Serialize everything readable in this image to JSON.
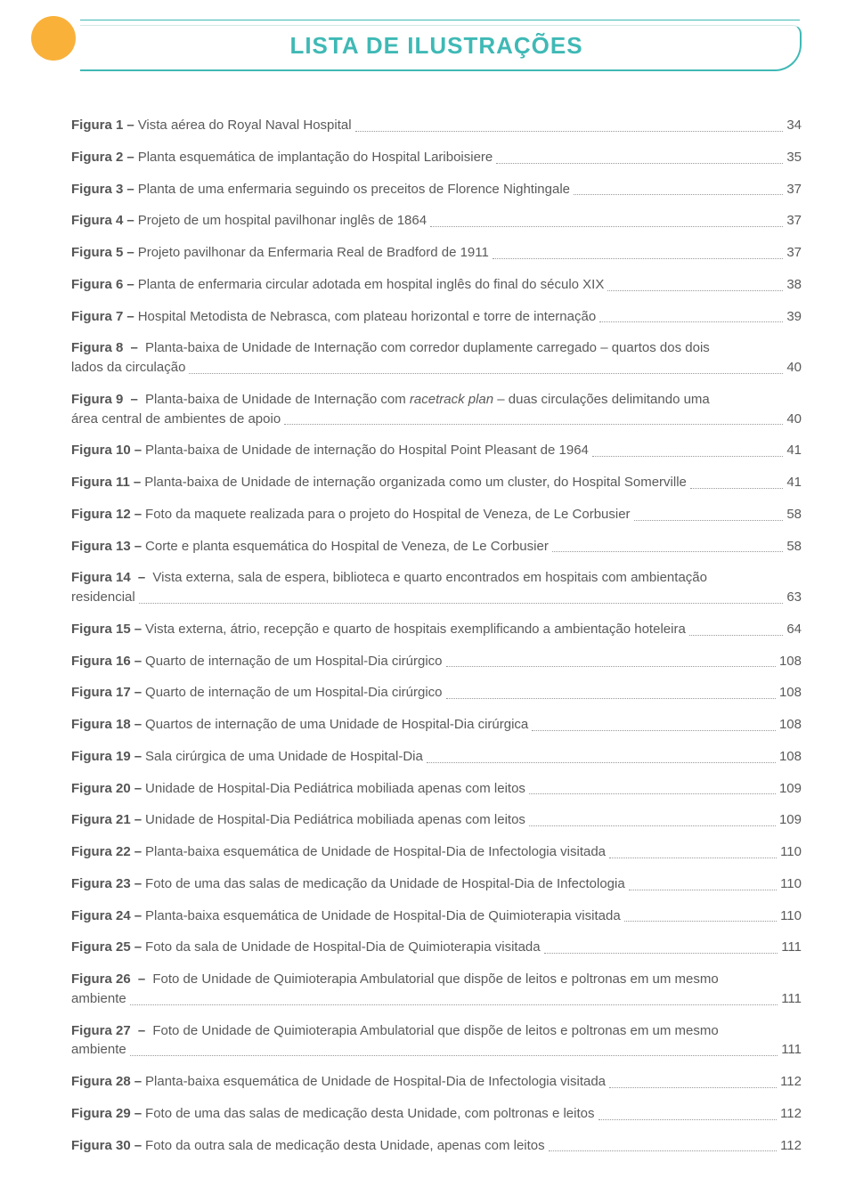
{
  "title": "LISTA DE ILUSTRAÇÕES",
  "colors": {
    "accent": "#3fb9b5",
    "circle": "#f9b13a",
    "text": "#5a5a5a",
    "label": "#555555",
    "background": "#ffffff"
  },
  "typography": {
    "title_fontsize": 26,
    "body_fontsize": 15,
    "font_family": "Arial"
  },
  "entries": [
    {
      "label": "Figura 1",
      "desc": "Vista aérea do Royal Naval Hospital",
      "page": "34"
    },
    {
      "label": "Figura 2",
      "desc": "Planta esquemática de implantação do Hospital Lariboisiere",
      "page": "35"
    },
    {
      "label": "Figura 3",
      "desc": "Planta de uma enfermaria seguindo os preceitos de Florence Nightingale",
      "page": "37"
    },
    {
      "label": "Figura 4",
      "desc": "Projeto de um hospital pavilhonar inglês de 1864",
      "page": "37"
    },
    {
      "label": "Figura 5",
      "desc": "Projeto pavilhonar da Enfermaria Real de Bradford de 1911",
      "page": "37"
    },
    {
      "label": "Figura 6",
      "desc": "Planta de enfermaria circular adotada em hospital inglês do final do século XIX",
      "page": "38"
    },
    {
      "label": "Figura 7",
      "desc": "Hospital Metodista de Nebrasca, com plateau horizontal e torre de internação",
      "page": "39"
    },
    {
      "label": "Figura 8",
      "desc_pre": "Planta-baixa de Unidade de Internação com corredor duplamente carregado – quartos dos dois",
      "desc_last": "lados da circulação",
      "page": "40",
      "multiline": true
    },
    {
      "label": "Figura 9",
      "desc_pre_html": "Planta-baixa de Unidade de Internação com <i>racetrack plan</i> – duas circulações delimitando uma",
      "desc_last": "área central de ambientes de apoio",
      "page": "40",
      "multiline": true
    },
    {
      "label": "Figura 10",
      "desc": "Planta-baixa de Unidade de internação do Hospital Point Pleasant de 1964",
      "page": "41"
    },
    {
      "label": "Figura 11",
      "desc": "Planta-baixa de Unidade de internação organizada como um cluster, do Hospital Somerville",
      "page": "41"
    },
    {
      "label": "Figura 12",
      "desc": "Foto da maquete realizada para o projeto do Hospital de Veneza, de Le Corbusier",
      "page": "58"
    },
    {
      "label": "Figura 13",
      "desc": "Corte e planta esquemática do Hospital de Veneza, de Le Corbusier",
      "page": "58"
    },
    {
      "label": "Figura 14",
      "desc_pre": "Vista externa, sala de espera, biblioteca e quarto encontrados em hospitais com ambientação",
      "desc_last": "residencial",
      "page": "63",
      "multiline": true
    },
    {
      "label": "Figura 15",
      "desc": "Vista externa, átrio, recepção e quarto de hospitais exemplificando a ambientação hoteleira",
      "page": "64"
    },
    {
      "label": "Figura 16",
      "desc": "Quarto de internação de um Hospital-Dia cirúrgico",
      "page": "108"
    },
    {
      "label": "Figura 17",
      "desc": "Quarto de internação de um Hospital-Dia cirúrgico",
      "page": "108"
    },
    {
      "label": "Figura 18",
      "desc": "Quartos de internação de uma Unidade de Hospital-Dia cirúrgica",
      "page": "108"
    },
    {
      "label": "Figura 19",
      "desc": "Sala cirúrgica de uma Unidade de Hospital-Dia",
      "page": "108"
    },
    {
      "label": "Figura 20",
      "desc": "Unidade de Hospital-Dia Pediátrica mobiliada apenas com leitos",
      "page": "109"
    },
    {
      "label": "Figura 21",
      "desc": "Unidade de Hospital-Dia Pediátrica mobiliada apenas com leitos",
      "page": "109"
    },
    {
      "label": "Figura 22",
      "desc": "Planta-baixa esquemática de Unidade de Hospital-Dia de Infectologia visitada",
      "page": "110"
    },
    {
      "label": "Figura 23",
      "desc": "Foto de uma das salas de medicação da Unidade de Hospital-Dia de Infectologia",
      "page": "110"
    },
    {
      "label": "Figura 24",
      "desc": "Planta-baixa esquemática de Unidade de Hospital-Dia de Quimioterapia visitada",
      "page": "110"
    },
    {
      "label": "Figura 25",
      "desc": "Foto da sala de Unidade de Hospital-Dia de Quimioterapia visitada",
      "page": "111"
    },
    {
      "label": "Figura 26",
      "desc_pre": "Foto de Unidade de Quimioterapia Ambulatorial que dispõe de leitos e poltronas em um mesmo",
      "desc_last": "ambiente",
      "page": "111",
      "multiline": true
    },
    {
      "label": "Figura 27",
      "desc_pre": "Foto de Unidade de Quimioterapia Ambulatorial que dispõe de leitos e poltronas em um mesmo",
      "desc_last": "ambiente",
      "page": "111",
      "multiline": true
    },
    {
      "label": "Figura 28",
      "desc": "Planta-baixa esquemática de Unidade de Hospital-Dia de Infectologia visitada",
      "page": "112"
    },
    {
      "label": "Figura 29",
      "desc": "Foto de uma das salas de medicação desta Unidade, com poltronas e leitos",
      "page": "112"
    },
    {
      "label": "Figura 30",
      "desc": "Foto da outra sala de medicação desta Unidade, apenas com leitos",
      "page": "112"
    }
  ]
}
